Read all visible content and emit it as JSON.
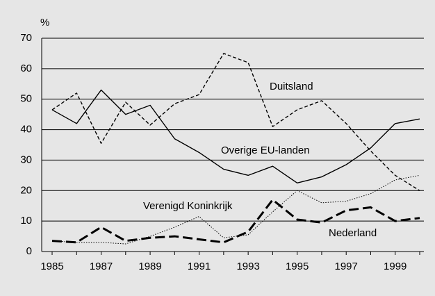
{
  "chart_data": {
    "type": "line",
    "y_axis_label": "%",
    "categories": [
      "1985",
      null,
      "1987",
      null,
      "1989",
      null,
      "1991",
      null,
      "1993",
      null,
      "1995",
      null,
      "1997",
      null,
      "1999",
      null
    ],
    "ylim": [
      0,
      70
    ],
    "yticks": [
      0,
      10,
      20,
      30,
      40,
      50,
      60,
      70
    ],
    "grid": true,
    "series": [
      {
        "name": "Duitsland",
        "color": "#000000",
        "dash": "5,3",
        "width": 1.4,
        "values": [
          46.5,
          52,
          35.5,
          49,
          41.5,
          48.5,
          51.5,
          65,
          62,
          41,
          46.5,
          49.5,
          42,
          33,
          25,
          20
        ]
      },
      {
        "name": "Overige EU-landen",
        "color": "#000000",
        "dash": "none",
        "width": 1.4,
        "values": [
          46.5,
          42,
          53,
          45,
          48,
          37,
          32.5,
          27,
          25,
          28,
          22.5,
          24.5,
          28.5,
          34,
          42,
          43.5
        ]
      },
      {
        "name": "Verenigd Koninkrijk",
        "color": "#000000",
        "dash": "1.5,2",
        "width": 1,
        "values": [
          3.5,
          3,
          3,
          2.5,
          5,
          8,
          11.5,
          4.5,
          5.5,
          13,
          20,
          16,
          16.5,
          19,
          23.5,
          25
        ]
      },
      {
        "name": "Nederland",
        "color": "#000000",
        "dash": "14,6",
        "width": 3,
        "values": [
          3.5,
          3,
          8,
          3.5,
          4.5,
          5,
          4,
          3,
          6.5,
          17,
          10.5,
          9.5,
          13.5,
          14.5,
          10,
          11
        ]
      }
    ]
  }
}
